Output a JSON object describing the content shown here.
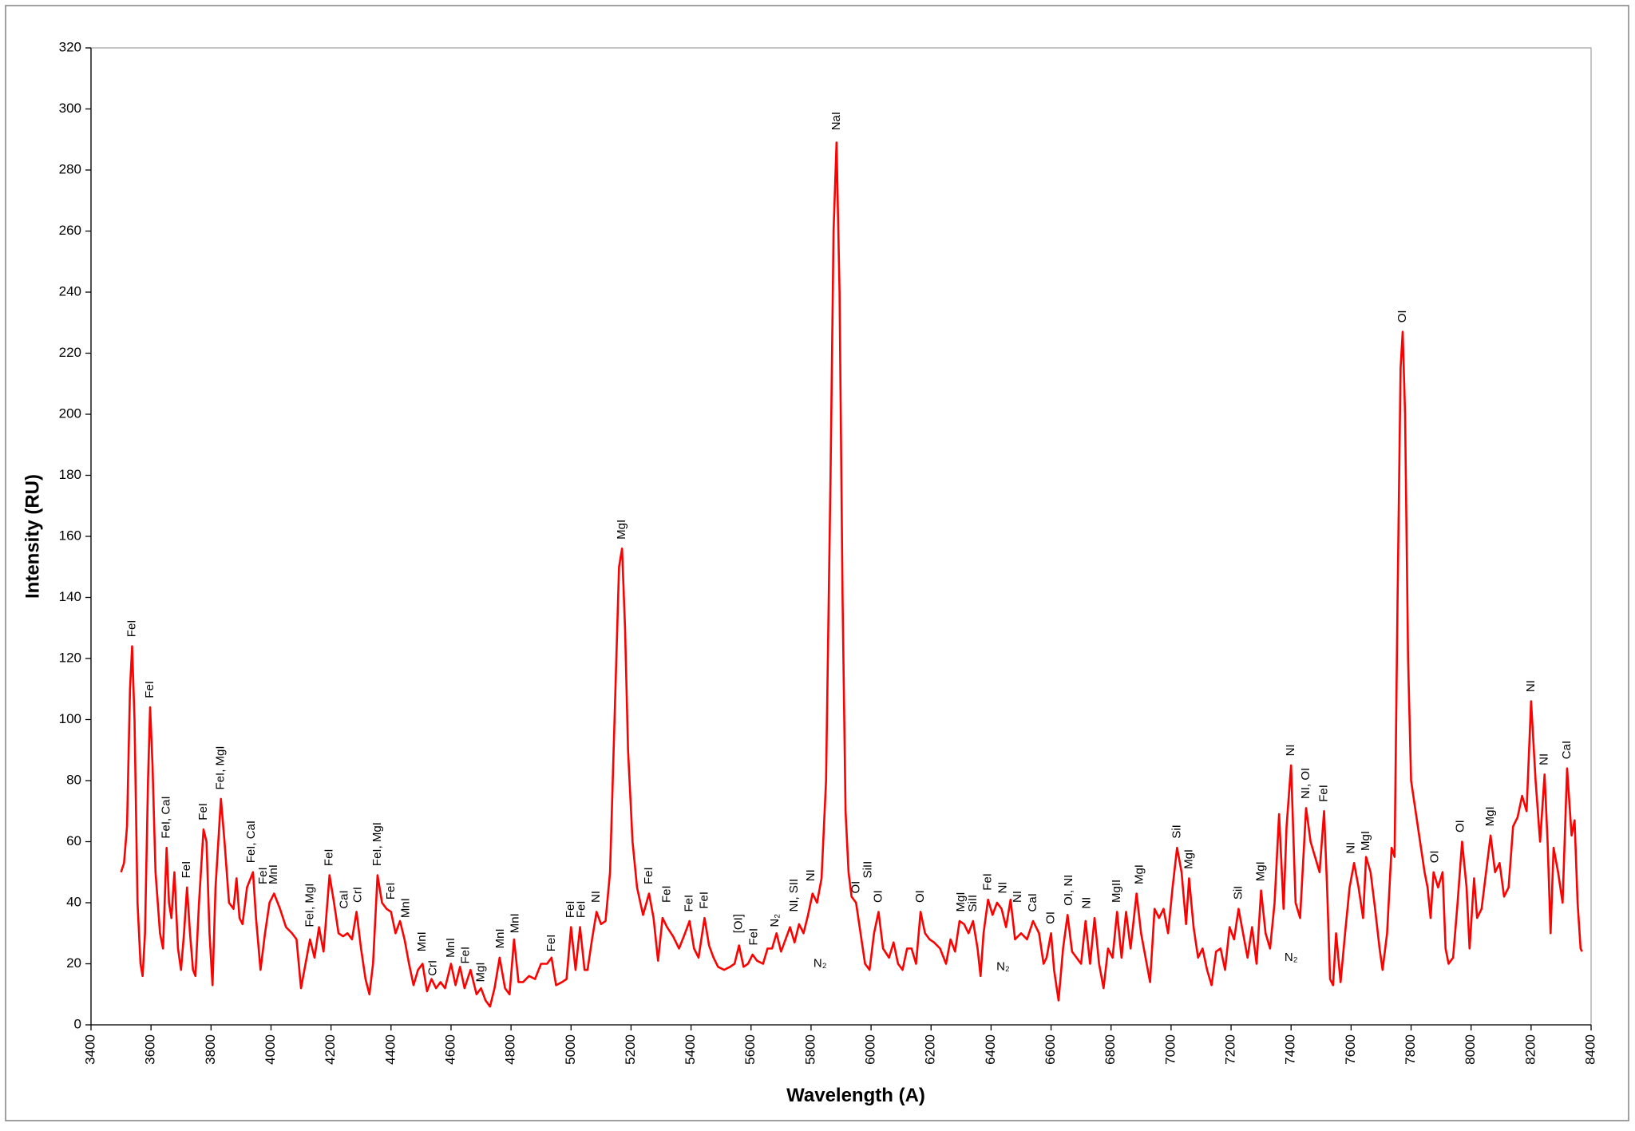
{
  "chart_data": {
    "type": "line",
    "x_label": "Wavelength (A)",
    "y_label": "Intensity (RU)",
    "color": "#ff0000",
    "xlim": [
      3400,
      8400
    ],
    "xticks": [
      3400,
      3600,
      3800,
      4000,
      4200,
      4400,
      4600,
      4800,
      5000,
      5200,
      5400,
      5600,
      5800,
      6000,
      6200,
      6400,
      6600,
      6800,
      7000,
      7200,
      7400,
      7600,
      7800,
      8000,
      8200,
      8400
    ],
    "ylim": [
      0,
      320
    ],
    "yticks": [
      0,
      20,
      40,
      60,
      80,
      100,
      120,
      140,
      160,
      180,
      200,
      220,
      240,
      260,
      280,
      300,
      320
    ],
    "x": [
      3500,
      3510,
      3520,
      3530,
      3537,
      3545,
      3555,
      3565,
      3572,
      3580,
      3590,
      3597,
      3605,
      3615,
      3630,
      3640,
      3652,
      3660,
      3668,
      3678,
      3690,
      3700,
      3710,
      3720,
      3730,
      3740,
      3748,
      3760,
      3775,
      3785,
      3795,
      3805,
      3815,
      3833,
      3845,
      3860,
      3875,
      3885,
      3895,
      3905,
      3920,
      3940,
      3950,
      3965,
      3980,
      3995,
      4010,
      4030,
      4050,
      4070,
      4085,
      4100,
      4115,
      4130,
      4145,
      4160,
      4175,
      4195,
      4210,
      4225,
      4240,
      4255,
      4270,
      4285,
      4300,
      4315,
      4328,
      4340,
      4355,
      4370,
      4385,
      4400,
      4415,
      4430,
      4445,
      4460,
      4475,
      4490,
      4505,
      4520,
      4535,
      4550,
      4565,
      4580,
      4600,
      4615,
      4630,
      4645,
      4665,
      4685,
      4700,
      4715,
      4730,
      4745,
      4762,
      4780,
      4795,
      4810,
      4825,
      4840,
      4860,
      4880,
      4900,
      4920,
      4935,
      4950,
      4970,
      4985,
      5000,
      5015,
      5030,
      5045,
      5055,
      5070,
      5085,
      5100,
      5115,
      5130,
      5145,
      5160,
      5170,
      5180,
      5190,
      5205,
      5220,
      5240,
      5260,
      5275,
      5290,
      5305,
      5320,
      5340,
      5360,
      5380,
      5395,
      5410,
      5425,
      5445,
      5460,
      5475,
      5490,
      5510,
      5530,
      5545,
      5560,
      5575,
      5590,
      5605,
      5620,
      5640,
      5655,
      5670,
      5685,
      5700,
      5715,
      5730,
      5745,
      5760,
      5775,
      5790,
      5805,
      5820,
      5835,
      5850,
      5865,
      5875,
      5885,
      5895,
      5905,
      5915,
      5925,
      5935,
      5950,
      5965,
      5980,
      5995,
      6010,
      6025,
      6040,
      6060,
      6075,
      6090,
      6105,
      6120,
      6135,
      6150,
      6165,
      6180,
      6195,
      6210,
      6230,
      6250,
      6265,
      6280,
      6295,
      6310,
      6325,
      6340,
      6355,
      6365,
      6375,
      6390,
      6405,
      6420,
      6435,
      6450,
      6465,
      6480,
      6500,
      6520,
      6540,
      6560,
      6575,
      6585,
      6600,
      6610,
      6625,
      6640,
      6655,
      6670,
      6685,
      6700,
      6715,
      6730,
      6745,
      6760,
      6775,
      6790,
      6805,
      6820,
      6835,
      6850,
      6865,
      6885,
      6900,
      6915,
      6930,
      6945,
      6960,
      6975,
      6990,
      7005,
      7020,
      7035,
      7050,
      7060,
      7075,
      7090,
      7105,
      7120,
      7135,
      7150,
      7165,
      7180,
      7195,
      7210,
      7225,
      7240,
      7255,
      7270,
      7285,
      7300,
      7315,
      7330,
      7345,
      7360,
      7375,
      7385,
      7400,
      7415,
      7430,
      7450,
      7465,
      7480,
      7495,
      7510,
      7520,
      7530,
      7540,
      7550,
      7565,
      7580,
      7595,
      7610,
      7625,
      7640,
      7650,
      7665,
      7680,
      7695,
      7705,
      7720,
      7735,
      7745,
      7755,
      7765,
      7772,
      7780,
      7790,
      7800,
      7815,
      7830,
      7845,
      7855,
      7865,
      7875,
      7890,
      7905,
      7915,
      7925,
      7940,
      7955,
      7970,
      7985,
      7995,
      8010,
      8020,
      8035,
      8050,
      8065,
      8080,
      8095,
      8110,
      8125,
      8140,
      8155,
      8170,
      8185,
      8200,
      8215,
      8230,
      8245,
      8255,
      8265,
      8275,
      8290,
      8305,
      8320,
      8335,
      8345,
      8355,
      8365,
      8370
    ],
    "values": [
      50,
      53,
      65,
      110,
      124,
      100,
      40,
      20,
      16,
      30,
      80,
      104,
      85,
      50,
      30,
      25,
      58,
      40,
      35,
      50,
      25,
      18,
      30,
      45,
      30,
      18,
      16,
      40,
      64,
      60,
      30,
      13,
      45,
      74,
      60,
      40,
      38,
      48,
      35,
      33,
      45,
      50,
      35,
      18,
      30,
      40,
      43,
      38,
      32,
      30,
      28,
      12,
      20,
      28,
      22,
      32,
      24,
      49,
      40,
      30,
      29,
      30,
      28,
      37,
      25,
      15,
      10,
      20,
      49,
      40,
      38,
      37,
      30,
      34,
      28,
      20,
      13,
      18,
      20,
      11,
      15,
      12,
      14,
      12,
      20,
      13,
      19,
      12,
      18,
      10,
      12,
      8,
      6,
      12,
      22,
      12,
      10,
      28,
      14,
      14,
      16,
      15,
      20,
      20,
      22,
      13,
      14,
      15,
      32,
      18,
      32,
      18,
      18,
      28,
      37,
      33,
      34,
      50,
      100,
      150,
      156,
      130,
      90,
      60,
      45,
      36,
      43,
      35,
      21,
      35,
      32,
      29,
      25,
      30,
      34,
      25,
      22,
      35,
      26,
      22,
      19,
      18,
      19,
      20,
      26,
      19,
      20,
      23,
      21,
      20,
      25,
      25,
      30,
      24,
      28,
      32,
      27,
      33,
      30,
      36,
      43,
      40,
      48,
      80,
      180,
      260,
      289,
      240,
      140,
      70,
      50,
      42,
      40,
      30,
      20,
      18,
      30,
      37,
      25,
      22,
      27,
      20,
      18,
      25,
      25,
      20,
      37,
      30,
      28,
      27,
      25,
      20,
      28,
      24,
      34,
      33,
      30,
      34,
      25,
      16,
      30,
      41,
      36,
      40,
      38,
      32,
      41,
      28,
      30,
      28,
      34,
      30,
      20,
      22,
      30,
      18,
      8,
      25,
      36,
      24,
      22,
      20,
      34,
      20,
      35,
      20,
      12,
      25,
      22,
      37,
      22,
      37,
      25,
      43,
      30,
      22,
      14,
      38,
      35,
      38,
      30,
      45,
      58,
      50,
      33,
      48,
      32,
      22,
      25,
      18,
      13,
      24,
      25,
      18,
      32,
      28,
      38,
      30,
      22,
      32,
      20,
      44,
      30,
      25,
      40,
      69,
      38,
      65,
      85,
      40,
      35,
      71,
      60,
      55,
      50,
      70,
      45,
      15,
      13,
      30,
      14,
      30,
      45,
      53,
      45,
      35,
      55,
      50,
      38,
      25,
      18,
      30,
      58,
      55,
      140,
      215,
      227,
      200,
      120,
      80,
      70,
      60,
      50,
      45,
      35,
      50,
      45,
      50,
      25,
      20,
      22,
      40,
      60,
      45,
      25,
      48,
      35,
      38,
      50,
      62,
      50,
      53,
      42,
      45,
      65,
      68,
      75,
      70,
      106,
      80,
      60,
      82,
      60,
      30,
      58,
      50,
      40,
      84,
      62,
      67,
      40,
      25,
      24
    ],
    "annotations": [
      {
        "text": "FeI",
        "x": 3537,
        "y": 127,
        "orientation": "vertical"
      },
      {
        "text": "FeI",
        "x": 3597,
        "y": 107,
        "orientation": "vertical"
      },
      {
        "text": "FeI, CaI",
        "x": 3652,
        "y": 61,
        "orientation": "vertical"
      },
      {
        "text": "FeI",
        "x": 3720,
        "y": 48,
        "orientation": "vertical"
      },
      {
        "text": "FeI",
        "x": 3775,
        "y": 67,
        "orientation": "vertical"
      },
      {
        "text": "FeI, MgI",
        "x": 3833,
        "y": 77,
        "orientation": "vertical"
      },
      {
        "text": "FeI, CaI",
        "x": 3935,
        "y": 53,
        "orientation": "vertical"
      },
      {
        "text": "FeI",
        "x": 3975,
        "y": 46,
        "orientation": "vertical"
      },
      {
        "text": "MnI",
        "x": 4010,
        "y": 46,
        "orientation": "vertical"
      },
      {
        "text": "FeI, MgI",
        "x": 4130,
        "y": 32,
        "orientation": "vertical"
      },
      {
        "text": "FeI",
        "x": 4195,
        "y": 52,
        "orientation": "vertical"
      },
      {
        "text": "CaI",
        "x": 4245,
        "y": 38,
        "orientation": "vertical"
      },
      {
        "text": "CrI",
        "x": 4290,
        "y": 40,
        "orientation": "vertical"
      },
      {
        "text": "FeI, MgI",
        "x": 4355,
        "y": 52,
        "orientation": "vertical"
      },
      {
        "text": "FeI",
        "x": 4400,
        "y": 41,
        "orientation": "vertical"
      },
      {
        "text": "MnI",
        "x": 4450,
        "y": 35,
        "orientation": "vertical"
      },
      {
        "text": "MnI",
        "x": 4505,
        "y": 24,
        "orientation": "vertical"
      },
      {
        "text": "CrI",
        "x": 4540,
        "y": 16,
        "orientation": "vertical"
      },
      {
        "text": "MnI",
        "x": 4600,
        "y": 22,
        "orientation": "vertical"
      },
      {
        "text": "FeI",
        "x": 4650,
        "y": 20,
        "orientation": "vertical"
      },
      {
        "text": "MgI",
        "x": 4700,
        "y": 14,
        "orientation": "vertical"
      },
      {
        "text": "MnI",
        "x": 4765,
        "y": 25,
        "orientation": "vertical"
      },
      {
        "text": "MnI",
        "x": 4815,
        "y": 30,
        "orientation": "vertical"
      },
      {
        "text": "FeI",
        "x": 4935,
        "y": 24,
        "orientation": "vertical"
      },
      {
        "text": "FeI",
        "x": 5000,
        "y": 35,
        "orientation": "vertical"
      },
      {
        "text": "FeI",
        "x": 5035,
        "y": 35,
        "orientation": "vertical"
      },
      {
        "text": "NI",
        "x": 5085,
        "y": 40,
        "orientation": "vertical"
      },
      {
        "text": "MgI",
        "x": 5170,
        "y": 159,
        "orientation": "vertical"
      },
      {
        "text": "FeI",
        "x": 5260,
        "y": 46,
        "orientation": "vertical"
      },
      {
        "text": "FeI",
        "x": 5320,
        "y": 40,
        "orientation": "vertical"
      },
      {
        "text": "FeI",
        "x": 5395,
        "y": 37,
        "orientation": "vertical"
      },
      {
        "text": "FeI",
        "x": 5445,
        "y": 38,
        "orientation": "vertical"
      },
      {
        "text": "[OI]",
        "x": 5560,
        "y": 30,
        "orientation": "vertical"
      },
      {
        "text": "FeI",
        "x": 5610,
        "y": 26,
        "orientation": "vertical"
      },
      {
        "text": "N₂",
        "x": 5680,
        "y": 32,
        "orientation": "vertical"
      },
      {
        "text": "NI, SII",
        "x": 5745,
        "y": 37,
        "orientation": "vertical"
      },
      {
        "text": "NI",
        "x": 5800,
        "y": 47,
        "orientation": "vertical"
      },
      {
        "text": "N₂",
        "x": 5830,
        "y": 20,
        "orientation": "horizontal"
      },
      {
        "text": "NaI",
        "x": 5885,
        "y": 293,
        "orientation": "vertical"
      },
      {
        "text": "OI",
        "x": 5950,
        "y": 43,
        "orientation": "vertical"
      },
      {
        "text": "SiII",
        "x": 5990,
        "y": 48,
        "orientation": "vertical"
      },
      {
        "text": "OI",
        "x": 6025,
        "y": 40,
        "orientation": "vertical"
      },
      {
        "text": "OI",
        "x": 6165,
        "y": 40,
        "orientation": "vertical"
      },
      {
        "text": "MgI",
        "x": 6300,
        "y": 37,
        "orientation": "vertical"
      },
      {
        "text": "SiII",
        "x": 6340,
        "y": 37,
        "orientation": "vertical"
      },
      {
        "text": "FeI",
        "x": 6390,
        "y": 44,
        "orientation": "vertical"
      },
      {
        "text": "NI",
        "x": 6440,
        "y": 43,
        "orientation": "vertical"
      },
      {
        "text": "N₂",
        "x": 6440,
        "y": 19,
        "orientation": "horizontal"
      },
      {
        "text": "NI",
        "x": 6490,
        "y": 40,
        "orientation": "vertical"
      },
      {
        "text": "CaI",
        "x": 6540,
        "y": 37,
        "orientation": "vertical"
      },
      {
        "text": "OI",
        "x": 6600,
        "y": 33,
        "orientation": "vertical"
      },
      {
        "text": "OI, NI",
        "x": 6660,
        "y": 39,
        "orientation": "vertical"
      },
      {
        "text": "NI",
        "x": 6720,
        "y": 38,
        "orientation": "vertical"
      },
      {
        "text": "MgII",
        "x": 6820,
        "y": 40,
        "orientation": "vertical"
      },
      {
        "text": "MgI",
        "x": 6895,
        "y": 46,
        "orientation": "vertical"
      },
      {
        "text": "SiI",
        "x": 7020,
        "y": 61,
        "orientation": "vertical"
      },
      {
        "text": "MgI",
        "x": 7060,
        "y": 51,
        "orientation": "vertical"
      },
      {
        "text": "SiI",
        "x": 7225,
        "y": 41,
        "orientation": "vertical"
      },
      {
        "text": "MgI",
        "x": 7300,
        "y": 47,
        "orientation": "vertical"
      },
      {
        "text": "NI",
        "x": 7400,
        "y": 88,
        "orientation": "vertical"
      },
      {
        "text": "N₂",
        "x": 7400,
        "y": 22,
        "orientation": "horizontal"
      },
      {
        "text": "NI, OI",
        "x": 7450,
        "y": 74,
        "orientation": "vertical"
      },
      {
        "text": "FeI",
        "x": 7510,
        "y": 73,
        "orientation": "vertical"
      },
      {
        "text": "NI",
        "x": 7600,
        "y": 56,
        "orientation": "vertical"
      },
      {
        "text": "MgI",
        "x": 7650,
        "y": 57,
        "orientation": "vertical"
      },
      {
        "text": "OI",
        "x": 7772,
        "y": 230,
        "orientation": "vertical"
      },
      {
        "text": "OI",
        "x": 7880,
        "y": 53,
        "orientation": "vertical"
      },
      {
        "text": "OI",
        "x": 7965,
        "y": 63,
        "orientation": "vertical"
      },
      {
        "text": "MgI",
        "x": 8065,
        "y": 65,
        "orientation": "vertical"
      },
      {
        "text": "NI",
        "x": 8200,
        "y": 109,
        "orientation": "vertical"
      },
      {
        "text": "NI",
        "x": 8245,
        "y": 85,
        "orientation": "vertical"
      },
      {
        "text": "CaI",
        "x": 8320,
        "y": 87,
        "orientation": "vertical"
      }
    ]
  }
}
